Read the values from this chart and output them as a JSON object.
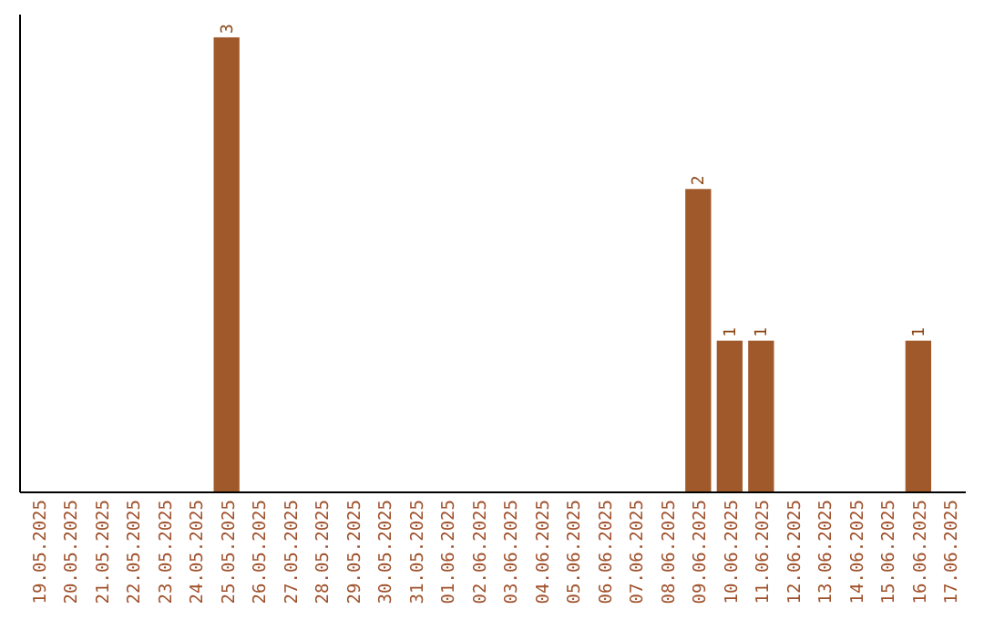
{
  "chart_data": {
    "type": "bar",
    "categories": [
      "19.05.2025",
      "20.05.2025",
      "21.05.2025",
      "22.05.2025",
      "23.05.2025",
      "24.05.2025",
      "25.05.2025",
      "26.05.2025",
      "27.05.2025",
      "28.05.2025",
      "29.05.2025",
      "30.05.2025",
      "31.05.2025",
      "01.06.2025",
      "02.06.2025",
      "03.06.2025",
      "04.06.2025",
      "05.06.2025",
      "06.06.2025",
      "07.06.2025",
      "08.06.2025",
      "09.06.2025",
      "10.06.2025",
      "11.06.2025",
      "12.06.2025",
      "13.06.2025",
      "14.06.2025",
      "15.06.2025",
      "16.06.2025",
      "17.06.2025"
    ],
    "values": [
      0,
      0,
      0,
      0,
      0,
      0,
      3,
      0,
      0,
      0,
      0,
      0,
      0,
      0,
      0,
      0,
      0,
      0,
      0,
      0,
      0,
      2,
      1,
      1,
      0,
      0,
      0,
      0,
      1,
      0
    ],
    "value_labels": [
      null,
      null,
      null,
      null,
      null,
      null,
      "3",
      null,
      null,
      null,
      null,
      null,
      null,
      null,
      null,
      null,
      null,
      null,
      null,
      null,
      null,
      "2",
      "1",
      "1",
      null,
      null,
      null,
      null,
      "1",
      null
    ],
    "color": "#a0592a",
    "ylim": [
      0,
      3.15
    ],
    "tick_labels": "x"
  }
}
